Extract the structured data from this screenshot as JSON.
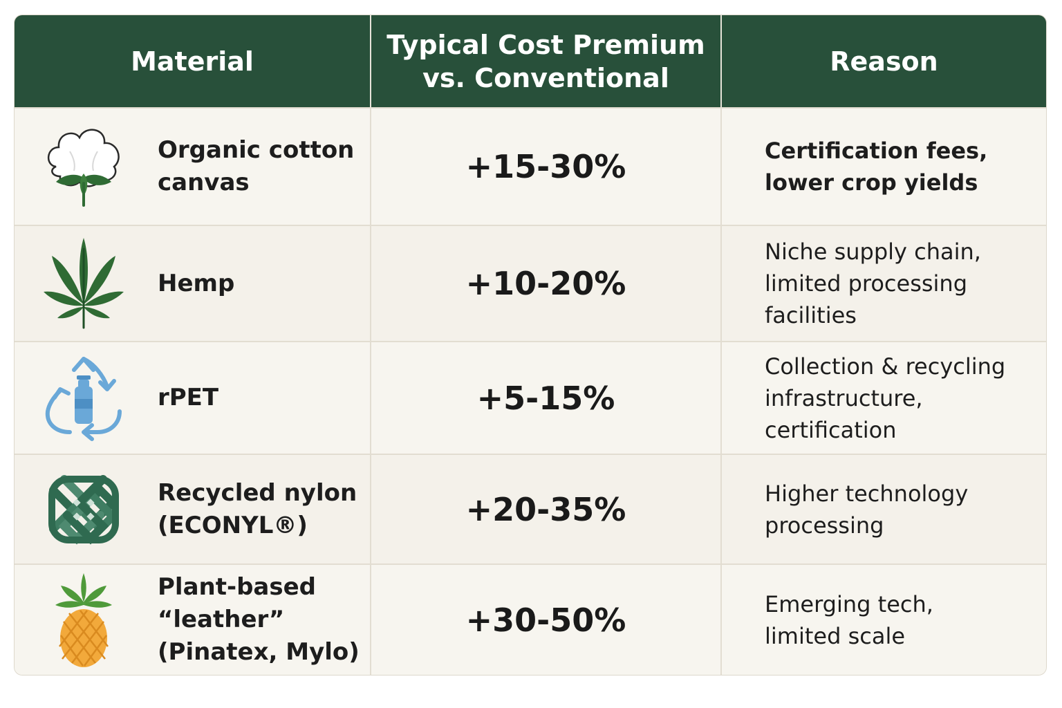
{
  "table": {
    "headers": [
      "Material",
      "Typical Cost Premium\nvs. Conventional",
      "Reason"
    ],
    "rows": [
      {
        "icon": "cotton-icon",
        "material": "Organic cotton\ncanvas",
        "premium": "+15-30%",
        "reason": "Certification fees,\nlower crop yields"
      },
      {
        "icon": "hemp-leaf-icon",
        "material": "Hemp",
        "premium": "+10-20%",
        "reason": "Niche supply chain,\nlimited processing facilities"
      },
      {
        "icon": "recycle-bottle-icon",
        "material": "rPET",
        "premium": "+5-15%",
        "reason": "Collection & recycling\ninfrastructure, certification"
      },
      {
        "icon": "woven-knot-icon",
        "material": "Recycled nylon\n(ECONYL®)",
        "premium": "+20-35%",
        "reason": "Higher technology\nprocessing"
      },
      {
        "icon": "pineapple-icon",
        "material": "Plant-based “leather”\n(Pinatex, Mylo)",
        "premium": "+30-50%",
        "reason": "Emerging tech,\nlimited scale"
      }
    ]
  },
  "colors": {
    "header_bg": "#28503a",
    "header_text": "#ffffff",
    "row_bg": "#f6f3ed",
    "leaf_green": "#2f6b34",
    "recycle_blue": "#6aa8d8",
    "knot_green": "#2f6a50",
    "pineapple_orange": "#f2a93b"
  }
}
